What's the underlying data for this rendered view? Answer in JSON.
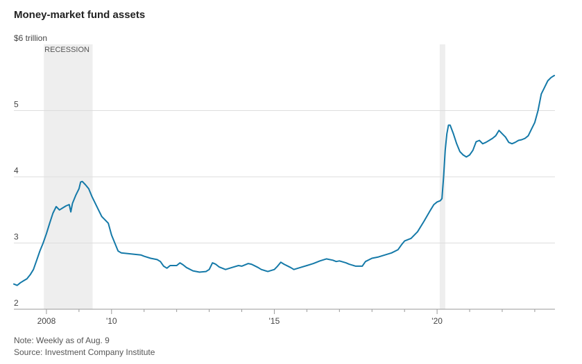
{
  "chart_data": {
    "type": "line",
    "title": "Money-market fund assets",
    "ylabel": "",
    "y_unit_label": "$6 trillion",
    "ylim": [
      2,
      6
    ],
    "xlim": [
      2007.0,
      2023.62
    ],
    "grid": true,
    "y_ticks": [
      {
        "value": 6,
        "label": "$6 trillion"
      },
      {
        "value": 5,
        "label": "5"
      },
      {
        "value": 4,
        "label": "4"
      },
      {
        "value": 3,
        "label": "3"
      },
      {
        "value": 2,
        "label": "2"
      }
    ],
    "x_ticks": [
      {
        "value": 2008,
        "label": "2008"
      },
      {
        "value": 2010,
        "label": "'10"
      },
      {
        "value": 2015,
        "label": "'15"
      },
      {
        "value": 2020,
        "label": "'20"
      }
    ],
    "recessions": [
      {
        "start": 2007.92,
        "end": 2009.42,
        "label": "RECESSION"
      },
      {
        "start": 2020.08,
        "end": 2020.25,
        "label": ""
      }
    ],
    "series": [
      {
        "color": "#1479a8",
        "points": [
          [
            2007.0,
            2.38
          ],
          [
            2007.1,
            2.36
          ],
          [
            2007.2,
            2.4
          ],
          [
            2007.3,
            2.43
          ],
          [
            2007.4,
            2.46
          ],
          [
            2007.5,
            2.52
          ],
          [
            2007.6,
            2.6
          ],
          [
            2007.7,
            2.74
          ],
          [
            2007.8,
            2.88
          ],
          [
            2007.9,
            3.0
          ],
          [
            2008.0,
            3.14
          ],
          [
            2008.1,
            3.3
          ],
          [
            2008.2,
            3.45
          ],
          [
            2008.3,
            3.55
          ],
          [
            2008.4,
            3.5
          ],
          [
            2008.5,
            3.53
          ],
          [
            2008.6,
            3.56
          ],
          [
            2008.7,
            3.58
          ],
          [
            2008.75,
            3.47
          ],
          [
            2008.8,
            3.6
          ],
          [
            2008.9,
            3.72
          ],
          [
            2009.0,
            3.82
          ],
          [
            2009.05,
            3.92
          ],
          [
            2009.1,
            3.93
          ],
          [
            2009.2,
            3.88
          ],
          [
            2009.3,
            3.82
          ],
          [
            2009.4,
            3.7
          ],
          [
            2009.5,
            3.6
          ],
          [
            2009.6,
            3.5
          ],
          [
            2009.7,
            3.4
          ],
          [
            2009.8,
            3.35
          ],
          [
            2009.9,
            3.3
          ],
          [
            2010.0,
            3.12
          ],
          [
            2010.1,
            3.0
          ],
          [
            2010.2,
            2.88
          ],
          [
            2010.3,
            2.85
          ],
          [
            2010.5,
            2.84
          ],
          [
            2010.7,
            2.83
          ],
          [
            2010.9,
            2.82
          ],
          [
            2011.0,
            2.8
          ],
          [
            2011.2,
            2.77
          ],
          [
            2011.4,
            2.75
          ],
          [
            2011.5,
            2.72
          ],
          [
            2011.6,
            2.65
          ],
          [
            2011.7,
            2.62
          ],
          [
            2011.8,
            2.66
          ],
          [
            2012.0,
            2.66
          ],
          [
            2012.1,
            2.7
          ],
          [
            2012.2,
            2.67
          ],
          [
            2012.3,
            2.63
          ],
          [
            2012.5,
            2.58
          ],
          [
            2012.7,
            2.56
          ],
          [
            2012.9,
            2.57
          ],
          [
            2013.0,
            2.6
          ],
          [
            2013.1,
            2.7
          ],
          [
            2013.2,
            2.68
          ],
          [
            2013.3,
            2.64
          ],
          [
            2013.5,
            2.6
          ],
          [
            2013.7,
            2.63
          ],
          [
            2013.9,
            2.66
          ],
          [
            2014.0,
            2.65
          ],
          [
            2014.2,
            2.69
          ],
          [
            2014.3,
            2.68
          ],
          [
            2014.5,
            2.63
          ],
          [
            2014.6,
            2.6
          ],
          [
            2014.8,
            2.57
          ],
          [
            2015.0,
            2.6
          ],
          [
            2015.1,
            2.65
          ],
          [
            2015.2,
            2.71
          ],
          [
            2015.3,
            2.68
          ],
          [
            2015.5,
            2.63
          ],
          [
            2015.6,
            2.6
          ],
          [
            2015.8,
            2.63
          ],
          [
            2016.0,
            2.66
          ],
          [
            2016.2,
            2.69
          ],
          [
            2016.4,
            2.73
          ],
          [
            2016.6,
            2.76
          ],
          [
            2016.8,
            2.74
          ],
          [
            2016.9,
            2.72
          ],
          [
            2017.0,
            2.73
          ],
          [
            2017.2,
            2.7
          ],
          [
            2017.3,
            2.68
          ],
          [
            2017.5,
            2.65
          ],
          [
            2017.7,
            2.65
          ],
          [
            2017.8,
            2.72
          ],
          [
            2018.0,
            2.77
          ],
          [
            2018.2,
            2.79
          ],
          [
            2018.4,
            2.82
          ],
          [
            2018.6,
            2.85
          ],
          [
            2018.8,
            2.9
          ],
          [
            2018.9,
            2.97
          ],
          [
            2019.0,
            3.03
          ],
          [
            2019.2,
            3.07
          ],
          [
            2019.4,
            3.17
          ],
          [
            2019.6,
            3.33
          ],
          [
            2019.8,
            3.5
          ],
          [
            2019.9,
            3.58
          ],
          [
            2020.0,
            3.62
          ],
          [
            2020.1,
            3.64
          ],
          [
            2020.15,
            3.67
          ],
          [
            2020.2,
            4.0
          ],
          [
            2020.25,
            4.4
          ],
          [
            2020.3,
            4.65
          ],
          [
            2020.35,
            4.78
          ],
          [
            2020.4,
            4.78
          ],
          [
            2020.5,
            4.65
          ],
          [
            2020.6,
            4.5
          ],
          [
            2020.7,
            4.38
          ],
          [
            2020.8,
            4.33
          ],
          [
            2020.9,
            4.3
          ],
          [
            2021.0,
            4.33
          ],
          [
            2021.1,
            4.4
          ],
          [
            2021.2,
            4.53
          ],
          [
            2021.3,
            4.55
          ],
          [
            2021.4,
            4.5
          ],
          [
            2021.5,
            4.52
          ],
          [
            2021.6,
            4.55
          ],
          [
            2021.7,
            4.58
          ],
          [
            2021.8,
            4.62
          ],
          [
            2021.9,
            4.7
          ],
          [
            2022.0,
            4.65
          ],
          [
            2022.1,
            4.6
          ],
          [
            2022.2,
            4.52
          ],
          [
            2022.3,
            4.5
          ],
          [
            2022.4,
            4.52
          ],
          [
            2022.5,
            4.55
          ],
          [
            2022.6,
            4.56
          ],
          [
            2022.7,
            4.58
          ],
          [
            2022.8,
            4.62
          ],
          [
            2022.9,
            4.72
          ],
          [
            2023.0,
            4.82
          ],
          [
            2023.1,
            5.0
          ],
          [
            2023.2,
            5.25
          ],
          [
            2023.3,
            5.35
          ],
          [
            2023.4,
            5.45
          ],
          [
            2023.5,
            5.5
          ],
          [
            2023.6,
            5.53
          ]
        ]
      }
    ]
  },
  "notes": {
    "line1": "Note: Weekly as of Aug. 9",
    "line2": "Source: Investment Company Institute"
  }
}
